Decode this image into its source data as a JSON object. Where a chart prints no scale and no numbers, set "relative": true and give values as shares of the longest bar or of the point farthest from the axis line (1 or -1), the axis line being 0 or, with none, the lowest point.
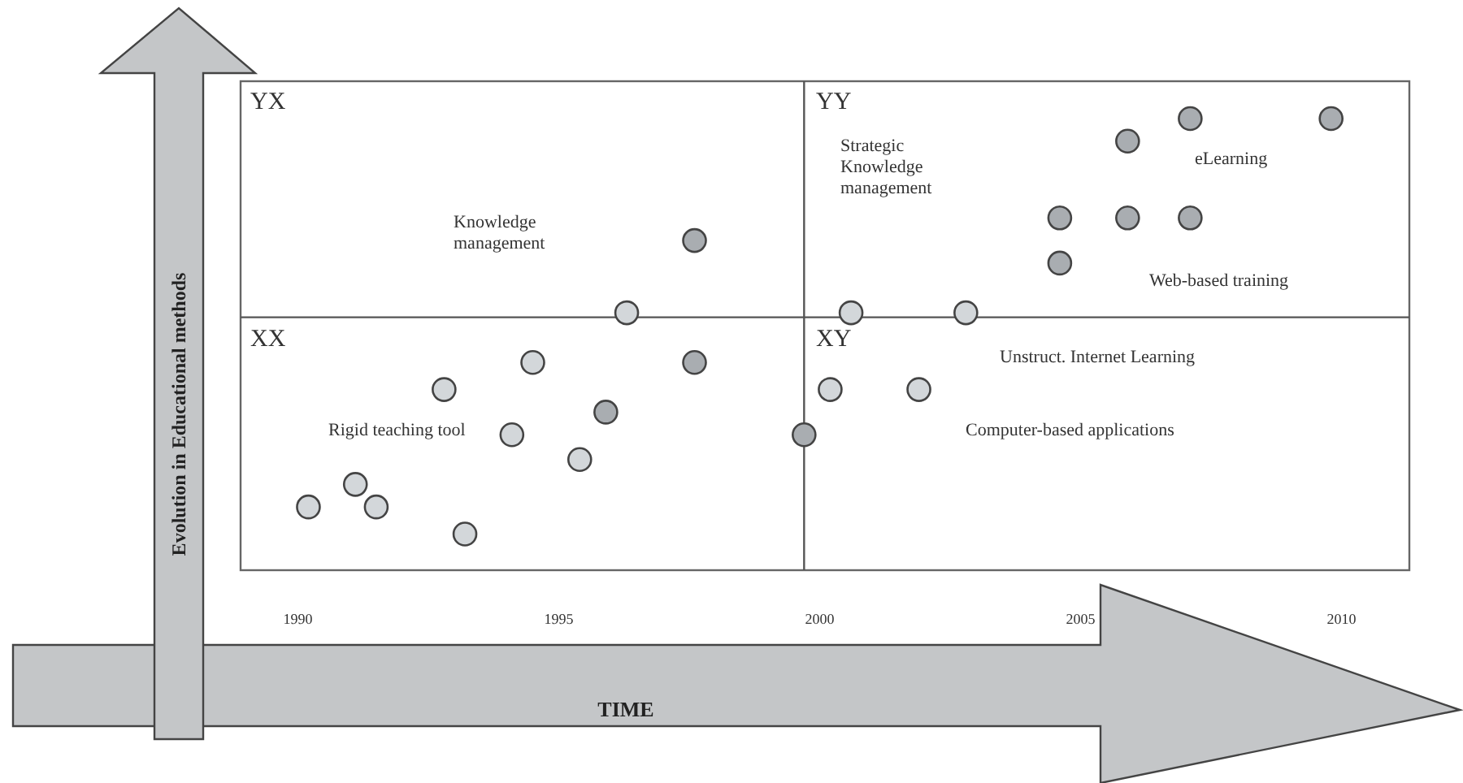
{
  "chart_data": {
    "type": "scatter",
    "xlabel": "TIME",
    "ylabel": "Evolution in Educational methods",
    "relative": true,
    "xlim": [
      1988.9,
      2011.3
    ],
    "xticks": [
      1990,
      1995,
      2000,
      2005,
      2010
    ],
    "grid": false,
    "marker": "circle",
    "series": [
      {
        "x": [
          1997.6,
          1996.3,
          1994.5,
          1997.6,
          1992.8,
          1995.9,
          1994.1,
          1995.4,
          1991.1,
          1990.2,
          1991.5,
          1993.2,
          1999.7,
          2007.1,
          2009.8,
          2005.9,
          2004.6,
          2005.9,
          2007.1,
          2004.6,
          2000.6,
          2002.8,
          2000.2,
          2001.9
        ],
        "values": [
          0.73,
          0.57,
          0.46,
          0.46,
          0.4,
          0.35,
          0.3,
          0.245,
          0.19,
          0.14,
          0.14,
          0.08,
          0.3,
          1,
          1,
          0.95,
          0.78,
          0.78,
          0.78,
          0.68,
          0.57,
          0.57,
          0.4,
          0.4
        ],
        "colors": [
          "#a9adb1",
          "#d3d7da",
          "#d3d7da",
          "#a9adb1",
          "#d3d7da",
          "#a9adb1",
          "#d3d7da",
          "#d3d7da",
          "#d3d7da",
          "#d3d7da",
          "#d3d7da",
          "#d3d7da",
          "#a9adb1",
          "#a9adb1",
          "#a9adb1",
          "#a9adb1",
          "#a9adb1",
          "#a9adb1",
          "#a9adb1",
          "#a9adb1",
          "#d3d7da",
          "#d3d7da",
          "#d3d7da",
          "#d3d7da"
        ]
      }
    ],
    "ref_lines": [
      {
        "axis": "x",
        "value": 1999.7,
        "color": "#555555"
      },
      {
        "axis": "y",
        "value": 0.56,
        "color": "#555555"
      }
    ],
    "annotations": [
      "YX",
      "YY",
      "XX",
      "XY",
      "Knowledge\nmanagement",
      "Rigid teaching tool",
      "Strategic\nKnowledge\nmanagement",
      "eLearning",
      "Web-based training",
      "Unstruct. Internet Learning",
      "Computer-based applications"
    ]
  }
}
